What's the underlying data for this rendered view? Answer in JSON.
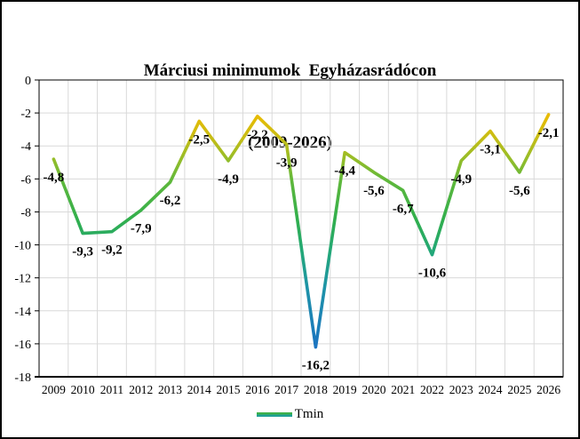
{
  "chart": {
    "title_line1": "Márciusi minimumok  Egyházasrádócon",
    "title_line2": "(2009-2026)",
    "legend_label": "Tmin"
  },
  "chart_data": {
    "type": "line",
    "title": "Márciusi minimumok Egyházasrádócon (2009-2026)",
    "xlabel": "",
    "ylabel": "",
    "categories": [
      "2009",
      "2010",
      "2011",
      "2012",
      "2013",
      "2014",
      "2015",
      "2016",
      "2017",
      "2018",
      "2019",
      "2020",
      "2021",
      "2022",
      "2023",
      "2024",
      "2025",
      "2026"
    ],
    "series": [
      {
        "name": "Tmin",
        "values": [
          -4.8,
          -9.3,
          -9.2,
          -7.9,
          -6.2,
          -2.5,
          -4.9,
          -2.2,
          -3.9,
          -16.2,
          -4.4,
          -5.6,
          -6.7,
          -10.6,
          -4.9,
          -3.1,
          -5.6,
          -2.1
        ],
        "labels": [
          "-4,8",
          "-9,3",
          "-9,2",
          "-7,9",
          "-6,2",
          "-2,5",
          "-4,9",
          "-2,2",
          "-3,9",
          "-16,2",
          "-4,4",
          "-5,6",
          "-6,7",
          "-10,6",
          "-4,9",
          "-3,1",
          "-5,6",
          "-2,1"
        ]
      }
    ],
    "ylim": [
      -18,
      0
    ],
    "y_tick_step": 2,
    "y_ticks": [
      "0",
      "-2",
      "-4",
      "-6",
      "-8",
      "-10",
      "-12",
      "-14",
      "-16",
      "-18"
    ],
    "grid": true,
    "legend_position": "bottom",
    "gridline_color": "#d9d9d9",
    "axis_color": "#000000",
    "line_gradient": [
      {
        "offset": 0.0,
        "color": "#f4c400"
      },
      {
        "offset": 0.11,
        "color": "#edbb00"
      },
      {
        "offset": 0.19,
        "color": "#c9bd14"
      },
      {
        "offset": 0.27,
        "color": "#93bd2a"
      },
      {
        "offset": 0.34,
        "color": "#5fb83b"
      },
      {
        "offset": 0.47,
        "color": "#31af4d"
      },
      {
        "offset": 0.58,
        "color": "#23a878"
      },
      {
        "offset": 0.7,
        "color": "#1e93a8"
      },
      {
        "offset": 0.88,
        "color": "#1c77be"
      },
      {
        "offset": 1.0,
        "color": "#1a67cf"
      }
    ],
    "legend_marker_colors": [
      "#3cb14b",
      "#1fa096"
    ]
  }
}
